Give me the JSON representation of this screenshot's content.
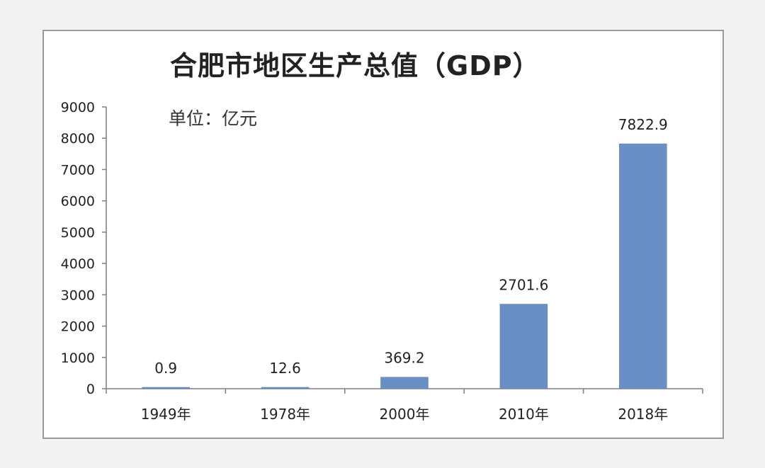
{
  "chart_data": {
    "type": "bar",
    "title": "合肥市地区生产总值（GDP）",
    "unit_label": "单位：亿元",
    "categories": [
      "1949年",
      "1978年",
      "2000年",
      "2010年",
      "2018年"
    ],
    "values": [
      0.9,
      12.6,
      369.2,
      2701.6,
      7822.9
    ],
    "value_labels": [
      "0.9",
      "12.6",
      "369.2",
      "2701.6",
      "7822.9"
    ],
    "ylim": [
      0,
      9000
    ],
    "yticks": [
      0,
      1000,
      2000,
      3000,
      4000,
      5000,
      6000,
      7000,
      8000,
      9000
    ],
    "grid": false,
    "bar_color": "#6a8fc4",
    "xlabel": "",
    "ylabel": ""
  }
}
